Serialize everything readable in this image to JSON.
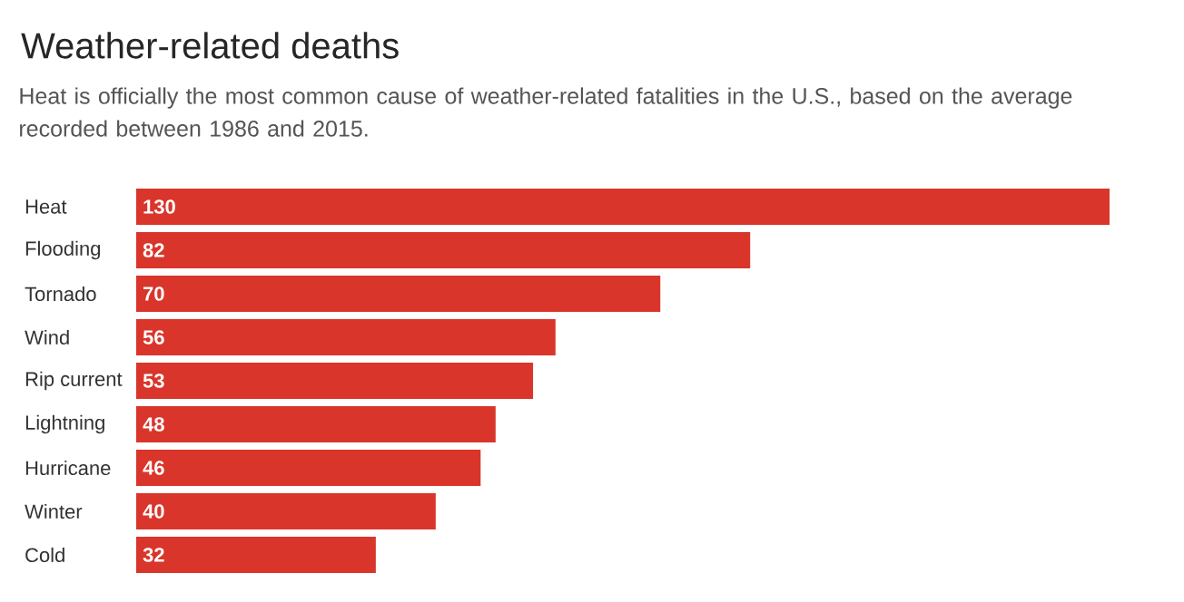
{
  "chart_data": {
    "type": "bar",
    "orientation": "horizontal",
    "title": "Weather-related deaths",
    "subtitle": "Heat is officially the most common cause of weather-related fatalities in the U.S., based on the average recorded between 1986 and 2015.",
    "categories": [
      "Heat",
      "Flooding",
      "Tornado",
      "Wind",
      "Rip current",
      "Lightning",
      "Hurricane",
      "Winter",
      "Cold"
    ],
    "values": [
      130,
      82,
      70,
      56,
      53,
      48,
      46,
      40,
      32
    ],
    "color": "#d9352b",
    "data_labels": true
  }
}
